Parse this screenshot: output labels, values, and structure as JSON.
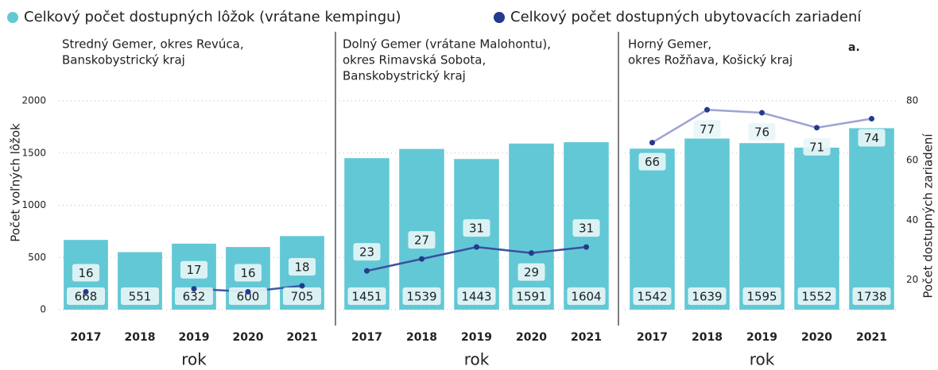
{
  "chart_data": {
    "type": "bar-line",
    "series": [
      {
        "name": "Celkový počet dostupných lôžok (vrátane kempingu)",
        "color": "#63c8d5"
      },
      {
        "name": "Celkový počet dostupných ubytovacích zariadení",
        "color": "#233a8f",
        "axis": "y2"
      }
    ],
    "ylabel": "Počet voľných lôžok",
    "y2label": "Počet dostupných zariadení",
    "xlabel": "rok",
    "ylim": [
      0,
      2000
    ],
    "yticks": [
      0,
      500,
      1000,
      1500,
      2000
    ],
    "y2lim": [
      10,
      80
    ],
    "y2ticks": [
      20,
      40,
      60,
      80
    ],
    "grid": true,
    "panels": [
      {
        "title": [
          "Stredný Gemer, okres Revúca,",
          "Banskobystrický kraj"
        ],
        "categories": [
          "2017",
          "2018",
          "2019",
          "2020",
          "2021"
        ],
        "bars": [
          668,
          551,
          632,
          600,
          705
        ],
        "line": [
          16,
          null,
          17,
          16,
          18
        ],
        "line_color": "#3b5bab"
      },
      {
        "title": [
          "Dolný Gemer (vrátane Malohontu),",
          "okres Rimavská Sobota,",
          "Banskobystrický kraj"
        ],
        "categories": [
          "2017",
          "2018",
          "2019",
          "2020",
          "2021"
        ],
        "bars": [
          1451,
          1539,
          1443,
          1591,
          1604
        ],
        "line": [
          23,
          27,
          31,
          29,
          31
        ],
        "line_color": "#3b4f9f"
      },
      {
        "title": [
          "Horný Gemer,",
          "okres Rožňava, Košický kraj"
        ],
        "annotation": "a.",
        "categories": [
          "2017",
          "2018",
          "2019",
          "2020",
          "2021"
        ],
        "bars": [
          1542,
          1639,
          1595,
          1552,
          1738
        ],
        "line": [
          66,
          77,
          76,
          71,
          74
        ],
        "line_color": "#9ea3d2"
      }
    ]
  }
}
